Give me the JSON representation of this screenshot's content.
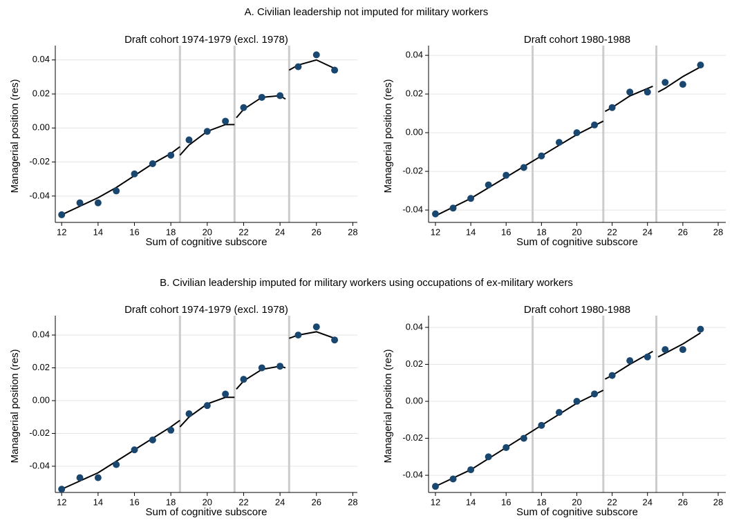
{
  "panel_titles": [
    "A. Civilian leadership not imputed for military workers",
    "B. Civilian leadership imputed for military workers using occupations of ex-military workers"
  ],
  "chart_data": [
    {
      "type": "scatter",
      "title": "Draft cohort 1974-1979 (excl. 1978)",
      "xlabel": "Sum of cognitive subscore",
      "ylabel": "Managerial position (res)",
      "x": [
        12,
        13,
        14,
        15,
        16,
        17,
        18,
        19,
        20,
        21,
        22,
        23,
        24,
        25,
        26,
        27
      ],
      "values": [
        -0.051,
        -0.044,
        -0.044,
        -0.037,
        -0.027,
        -0.021,
        -0.016,
        -0.007,
        -0.002,
        0.004,
        0.012,
        0.018,
        0.019,
        0.036,
        0.043,
        0.034
      ],
      "color": "#1a476f",
      "fits": [
        {
          "x": [
            12,
            13,
            14,
            15,
            16,
            17,
            18,
            18.5
          ],
          "values": [
            -0.051,
            -0.046,
            -0.041,
            -0.035,
            -0.028,
            -0.021,
            -0.015,
            -0.011
          ]
        },
        {
          "x": [
            18.5,
            19,
            20,
            21,
            21.5
          ],
          "values": [
            -0.016,
            -0.01,
            -0.002,
            0.002,
            0.002
          ]
        },
        {
          "x": [
            21.6,
            22,
            23,
            24,
            24.3
          ],
          "values": [
            0.006,
            0.011,
            0.018,
            0.019,
            0.017
          ]
        },
        {
          "x": [
            24.5,
            25,
            26,
            27
          ],
          "values": [
            0.034,
            0.037,
            0.04,
            0.035
          ]
        }
      ],
      "fit_color": "#000000",
      "vlines": [
        18.5,
        21.5,
        24.5
      ],
      "vline_color": "#cccccc",
      "xlim": [
        11.65,
        28.25
      ],
      "ylim": [
        -0.0555,
        0.046
      ],
      "xticks": [
        12,
        14,
        16,
        18,
        20,
        22,
        24,
        26,
        28
      ],
      "yticks": [
        -0.04,
        -0.02,
        {
          "value": 0,
          "label": "0.00"
        },
        0.02,
        0.04
      ],
      "grid": true
    },
    {
      "type": "scatter",
      "title": "Draft cohort 1980-1988",
      "xlabel": "Sum of cognitive subscore",
      "ylabel": "Managerial position (res)",
      "x": [
        12,
        13,
        14,
        15,
        16,
        17,
        18,
        19,
        20,
        21,
        22,
        23,
        24,
        25,
        26,
        27
      ],
      "values": [
        -0.042,
        -0.039,
        -0.034,
        -0.027,
        -0.022,
        -0.018,
        -0.012,
        -0.005,
        0.0,
        0.004,
        0.013,
        0.021,
        0.021,
        0.026,
        0.025,
        0.035
      ],
      "color": "#1a476f",
      "fits": [
        {
          "x": [
            12,
            14,
            16,
            18,
            20,
            21.5
          ],
          "values": [
            -0.043,
            -0.034,
            -0.023,
            -0.012,
            -0.001,
            0.006
          ]
        },
        {
          "x": [
            21.6,
            22,
            23,
            24.3
          ],
          "values": [
            0.011,
            0.013,
            0.019,
            0.024
          ]
        },
        {
          "x": [
            24.6,
            25,
            26,
            27
          ],
          "values": [
            0.021,
            0.023,
            0.029,
            0.034
          ]
        }
      ],
      "fit_color": "#000000",
      "vlines": [
        17.5,
        21.5,
        24.5
      ],
      "vline_color": "#cccccc",
      "xlim": [
        11.61,
        28.43
      ],
      "ylim": [
        -0.0464,
        0.0429
      ],
      "xticks": [
        12,
        14,
        16,
        18,
        20,
        22,
        24,
        26,
        28
      ],
      "yticks": [
        -0.04,
        -0.02,
        {
          "value": 0,
          "label": "0.00"
        },
        0.02,
        0.04
      ],
      "grid": true
    },
    {
      "type": "scatter",
      "title": "Draft cohort 1974-1979 (excl. 1978)",
      "xlabel": "Sum of cognitive subscore",
      "ylabel": "Managerial position (res)",
      "x": [
        12,
        13,
        14,
        15,
        16,
        17,
        18,
        19,
        20,
        21,
        22,
        23,
        24,
        25,
        26,
        27
      ],
      "values": [
        -0.054,
        -0.047,
        -0.047,
        -0.039,
        -0.03,
        -0.024,
        -0.018,
        -0.008,
        -0.003,
        0.004,
        0.013,
        0.02,
        0.021,
        0.04,
        0.045,
        0.037
      ],
      "color": "#1a476f",
      "fits": [
        {
          "x": [
            12,
            13,
            14,
            15,
            16,
            17,
            18,
            18.5
          ],
          "values": [
            -0.054,
            -0.049,
            -0.044,
            -0.037,
            -0.03,
            -0.023,
            -0.016,
            -0.012
          ]
        },
        {
          "x": [
            18.5,
            19,
            20,
            21,
            21.5
          ],
          "values": [
            -0.016,
            -0.01,
            -0.002,
            0.002,
            0.002
          ]
        },
        {
          "x": [
            21.6,
            22,
            23,
            24,
            24.3
          ],
          "values": [
            0.007,
            0.012,
            0.019,
            0.021,
            0.02
          ]
        },
        {
          "x": [
            24.5,
            25,
            26,
            27
          ],
          "values": [
            0.038,
            0.04,
            0.042,
            0.038
          ]
        }
      ],
      "fit_color": "#000000",
      "vlines": [
        18.5,
        21.5,
        24.5
      ],
      "vline_color": "#cccccc",
      "xlim": [
        11.65,
        28.25
      ],
      "ylim": [
        -0.056,
        0.0493
      ],
      "xticks": [
        12,
        14,
        16,
        18,
        20,
        22,
        24,
        26,
        28
      ],
      "yticks": [
        -0.04,
        -0.02,
        {
          "value": 0,
          "label": "0.00"
        },
        0.02,
        0.04
      ],
      "grid": true
    },
    {
      "type": "scatter",
      "title": "Draft cohort 1980-1988",
      "xlabel": "Sum of cognitive subscore",
      "ylabel": "Managerial position (res)",
      "x": [
        12,
        13,
        14,
        15,
        16,
        17,
        18,
        19,
        20,
        21,
        22,
        23,
        24,
        25,
        26,
        27
      ],
      "values": [
        -0.046,
        -0.042,
        -0.037,
        -0.03,
        -0.025,
        -0.02,
        -0.013,
        -0.006,
        0.0,
        0.004,
        0.014,
        0.022,
        0.024,
        0.028,
        0.028,
        0.039
      ],
      "color": "#1a476f",
      "fits": [
        {
          "x": [
            12,
            14,
            16,
            18,
            20,
            21.5
          ],
          "values": [
            -0.046,
            -0.037,
            -0.025,
            -0.013,
            -0.001,
            0.006
          ]
        },
        {
          "x": [
            21.6,
            22,
            23,
            24.3
          ],
          "values": [
            0.012,
            0.014,
            0.02,
            0.027
          ]
        },
        {
          "x": [
            24.6,
            25,
            26,
            27
          ],
          "values": [
            0.024,
            0.026,
            0.031,
            0.037
          ]
        }
      ],
      "fit_color": "#000000",
      "vlines": [
        17.5,
        21.5,
        24.5
      ],
      "vline_color": "#cccccc",
      "xlim": [
        11.61,
        28.43
      ],
      "ylim": [
        -0.0493,
        0.0441
      ],
      "xticks": [
        12,
        14,
        16,
        18,
        20,
        22,
        24,
        26,
        28
      ],
      "yticks": [
        -0.04,
        -0.02,
        {
          "value": 0,
          "label": "0.00"
        },
        0.02,
        0.04
      ],
      "grid": true
    }
  ]
}
